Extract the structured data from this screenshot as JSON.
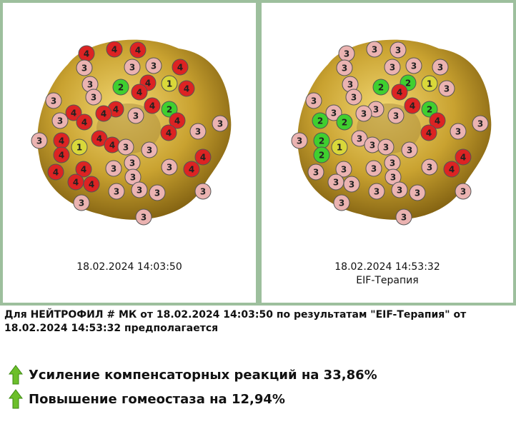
{
  "panels": [
    {
      "timestamp": "18.02.2024 14:03:50",
      "markers": [
        4,
        4,
        4,
        3,
        3,
        3,
        4,
        3,
        4,
        1,
        4,
        2,
        4,
        3,
        3,
        4,
        4,
        3,
        4,
        2,
        4,
        3,
        4,
        4,
        4,
        3,
        3,
        3,
        4,
        1,
        4,
        4,
        3,
        3,
        4,
        3,
        3,
        4,
        4,
        3,
        4,
        4,
        4,
        4,
        3,
        3,
        3,
        3,
        3,
        3,
        3
      ]
    },
    {
      "timestamp": "18.02.2024 14:53:32",
      "label": "EIF-Терапия",
      "markers": [
        3,
        3,
        3,
        3,
        3,
        3,
        3,
        3,
        2,
        1,
        3,
        2,
        4,
        3,
        3,
        4,
        3,
        3,
        3,
        2,
        3,
        2,
        2,
        4,
        4,
        3,
        3,
        3,
        2,
        1,
        3,
        3,
        3,
        3,
        2,
        3,
        3,
        3,
        3,
        3,
        4,
        4,
        3,
        3,
        3,
        3,
        3,
        3,
        3,
        3,
        3
      ]
    }
  ],
  "summary": {
    "text": "Для НЕЙТРОФИЛ # МК от 18.02.2024 14:03:50 по результатам \"EIF-Терапия\" от 18.02.2024 14:53:32 предполагается",
    "items": [
      "Усиление компенсаторных реакций на 33,86%",
      "Повышение гомеостаза на 12,94%"
    ]
  }
}
